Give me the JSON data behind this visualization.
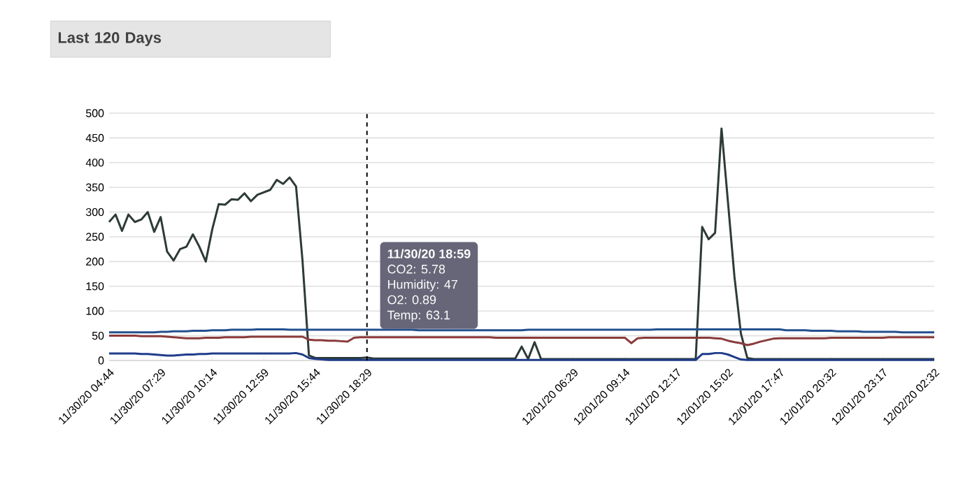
{
  "chart_data": {
    "type": "line",
    "title": "Last 120 Days",
    "categories": [
      "11/30/20 04:44",
      null,
      null,
      null,
      null,
      null,
      null,
      null,
      "11/30/20 07:29",
      null,
      null,
      null,
      null,
      null,
      null,
      null,
      "11/30/20 10:14",
      null,
      null,
      null,
      null,
      null,
      null,
      null,
      "11/30/20 12:59",
      null,
      null,
      null,
      null,
      null,
      null,
      null,
      "11/30/20 15:44",
      null,
      null,
      null,
      null,
      null,
      null,
      null,
      "11/30/20 18:29",
      null,
      null,
      null,
      null,
      null,
      null,
      null,
      null,
      null,
      null,
      null,
      null,
      null,
      null,
      null,
      null,
      null,
      null,
      null,
      null,
      null,
      null,
      null,
      null,
      null,
      null,
      null,
      null,
      null,
      null,
      null,
      "12/01/20 06:29",
      null,
      null,
      null,
      null,
      null,
      null,
      null,
      "12/01/20 09:14",
      null,
      null,
      null,
      null,
      null,
      null,
      null,
      "12/01/20 12:17",
      null,
      null,
      null,
      null,
      null,
      null,
      null,
      "12/01/20 15:02",
      null,
      null,
      null,
      null,
      null,
      null,
      null,
      "12/01/20 17:47",
      null,
      null,
      null,
      null,
      null,
      null,
      null,
      "12/01/20 20:32",
      null,
      null,
      null,
      null,
      null,
      null,
      null,
      "12/01/20 23:17",
      null,
      null,
      null,
      null,
      null,
      null,
      null,
      "12/02/20 02:32"
    ],
    "ylim": [
      0,
      500
    ],
    "yticks": [
      0,
      50,
      100,
      150,
      200,
      250,
      300,
      350,
      400,
      450,
      500
    ],
    "grid": "y",
    "marker": "none",
    "line_style": "solid",
    "series": [
      {
        "color": "#2d3b37",
        "values": [
          280,
          295,
          262,
          295,
          280,
          285,
          300,
          260,
          290,
          220,
          202,
          225,
          230,
          255,
          230,
          200,
          265,
          316,
          315,
          326,
          325,
          338,
          322,
          335,
          340,
          345,
          365,
          357,
          370,
          352,
          202,
          10,
          5,
          5,
          5,
          5,
          5,
          5,
          5,
          5,
          6,
          4,
          4,
          4,
          4,
          4,
          4,
          4,
          4,
          4,
          4,
          4,
          4,
          4,
          4,
          4,
          4,
          4,
          4,
          4,
          4,
          4,
          4,
          4,
          28,
          3,
          37,
          3,
          3,
          3,
          3,
          3,
          3,
          3,
          3,
          3,
          3,
          3,
          3,
          3,
          3,
          3,
          3,
          3,
          3,
          3,
          3,
          3,
          3,
          3,
          3,
          3,
          270,
          245,
          258,
          469,
          320,
          170,
          55,
          5,
          3,
          3,
          3,
          3,
          3,
          3,
          3,
          3,
          3,
          3,
          3,
          3,
          3,
          3,
          3,
          3,
          3,
          3,
          3,
          3,
          3,
          3,
          3,
          3,
          3,
          3,
          3,
          3,
          3
        ]
      },
      {
        "color": "#8b3a3a",
        "values": [
          50,
          50,
          50,
          50,
          50,
          49,
          49,
          49,
          49,
          48,
          47,
          46,
          45,
          45,
          45,
          46,
          46,
          46,
          47,
          47,
          47,
          47,
          48,
          48,
          48,
          48,
          48,
          48,
          48,
          48,
          48,
          42,
          41,
          41,
          40,
          40,
          39,
          38,
          46,
          47,
          47,
          47,
          47,
          47,
          47,
          47,
          47,
          47,
          47,
          47,
          47,
          47,
          47,
          47,
          47,
          47,
          47,
          47,
          47,
          47,
          46,
          46,
          46,
          46,
          46,
          46,
          46,
          46,
          46,
          46,
          46,
          46,
          46,
          46,
          46,
          46,
          46,
          46,
          46,
          46,
          46,
          35,
          45,
          46,
          46,
          46,
          46,
          46,
          46,
          46,
          46,
          46,
          46,
          46,
          45,
          44,
          40,
          37,
          35,
          31,
          34,
          38,
          41,
          44,
          45,
          45,
          45,
          45,
          45,
          45,
          45,
          45,
          46,
          46,
          46,
          46,
          46,
          46,
          46,
          46,
          46,
          47,
          47,
          47,
          47,
          47,
          47,
          47,
          47
        ]
      },
      {
        "color": "#1f3c8a",
        "values": [
          14,
          14,
          14,
          14,
          14,
          13,
          13,
          12,
          11,
          10,
          10,
          11,
          12,
          12,
          13,
          13,
          14,
          14,
          14,
          14,
          14,
          14,
          14,
          14,
          14,
          14,
          14,
          14,
          14,
          15,
          12,
          5,
          3,
          2,
          1,
          1,
          1,
          1,
          1,
          1,
          1,
          1,
          1,
          1,
          1,
          1,
          1,
          1,
          1,
          1,
          1,
          1,
          1,
          1,
          1,
          1,
          1,
          1,
          1,
          1,
          1,
          1,
          1,
          1,
          1,
          1,
          1,
          1,
          1,
          1,
          1,
          1,
          1,
          1,
          1,
          1,
          1,
          1,
          1,
          1,
          1,
          1,
          1,
          1,
          1,
          1,
          1,
          1,
          1,
          1,
          1,
          1,
          13,
          13,
          15,
          15,
          12,
          7,
          2,
          1,
          1,
          1,
          1,
          1,
          1,
          1,
          1,
          1,
          1,
          1,
          1,
          1,
          1,
          1,
          1,
          1,
          1,
          1,
          1,
          1,
          1,
          1,
          1,
          1,
          1,
          1,
          1,
          1,
          1
        ]
      },
      {
        "color": "#23508f",
        "values": [
          57,
          57,
          57,
          57,
          57,
          57,
          57,
          57,
          58,
          58,
          59,
          59,
          59,
          60,
          60,
          60,
          61,
          61,
          61,
          62,
          62,
          62,
          62,
          63,
          63,
          63,
          63,
          63,
          62,
          62,
          62,
          62,
          62,
          62,
          62,
          62,
          62,
          62,
          62,
          62,
          62,
          62,
          62,
          62,
          62,
          62,
          62,
          62,
          61,
          61,
          61,
          61,
          61,
          61,
          61,
          61,
          61,
          61,
          61,
          61,
          61,
          61,
          61,
          61,
          61,
          62,
          62,
          62,
          62,
          62,
          62,
          62,
          62,
          62,
          62,
          62,
          62,
          62,
          62,
          62,
          62,
          62,
          62,
          62,
          62,
          63,
          63,
          63,
          63,
          63,
          63,
          63,
          63,
          63,
          63,
          63,
          63,
          63,
          63,
          63,
          63,
          63,
          63,
          63,
          63,
          61,
          61,
          61,
          61,
          60,
          60,
          60,
          60,
          59,
          59,
          59,
          59,
          58,
          58,
          58,
          58,
          58,
          58,
          57,
          57,
          57,
          57,
          57,
          57
        ]
      }
    ],
    "annotations": [
      "**11/30/20 18:59**",
      "CO2: 5.78",
      "Humidity: 47",
      "O2: 0.89",
      "Temp: 63.1"
    ]
  }
}
